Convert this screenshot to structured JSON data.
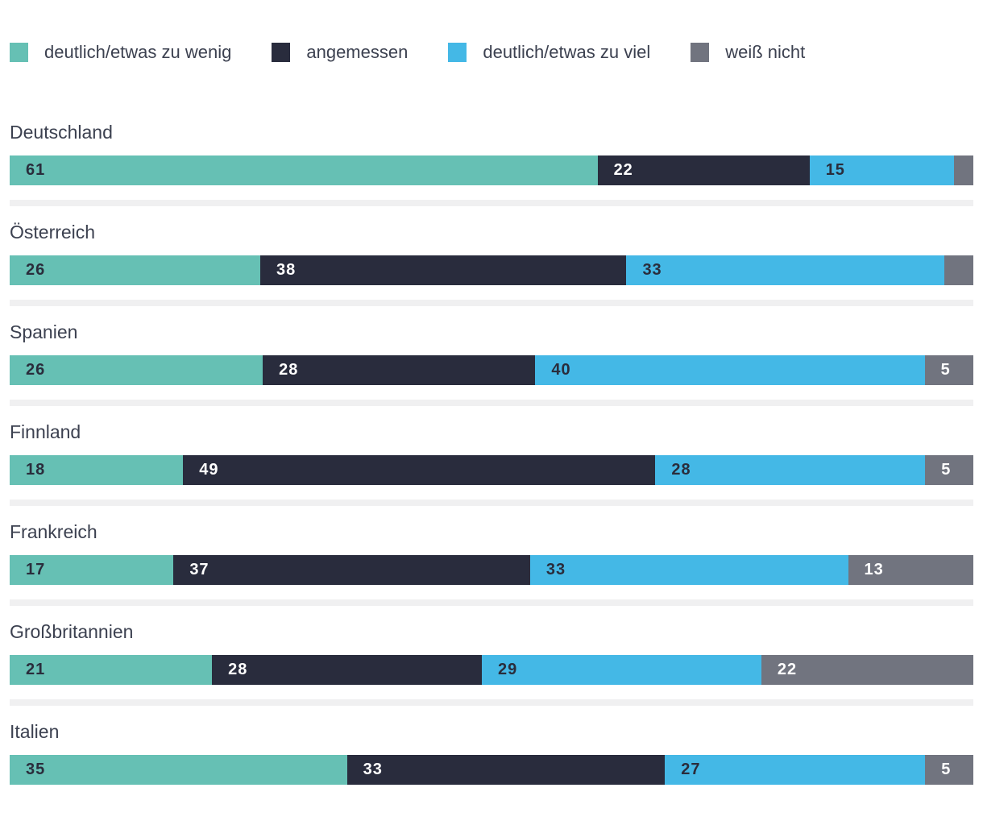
{
  "chart_data": {
    "type": "bar",
    "variant": "horizontal_stacked_percent",
    "title": "",
    "xlabel": "",
    "ylabel": "",
    "unit": "percent",
    "grid": false,
    "legend_position": "top",
    "value_label_min_value": 5,
    "categories": [
      "Deutschland",
      "Österreich",
      "Spanien",
      "Finnland",
      "Frankreich",
      "Großbritannien",
      "Italien"
    ],
    "series": [
      {
        "name": "deutlich/etwas zu wenig",
        "color": "#66C0B4",
        "value_text_color": "#2A2D3C",
        "values": [
          61,
          26,
          26,
          18,
          17,
          21,
          35
        ]
      },
      {
        "name": "angemessen",
        "color": "#292C3D",
        "value_text_color": "#FFFFFF",
        "values": [
          22,
          38,
          28,
          49,
          37,
          28,
          33
        ]
      },
      {
        "name": "deutlich/etwas zu viel",
        "color": "#44B8E6",
        "value_text_color": "#2A2D3C",
        "values": [
          15,
          33,
          40,
          28,
          33,
          29,
          27
        ]
      },
      {
        "name": "weiß nicht",
        "color": "#71747F",
        "value_text_color": "#FFFFFF",
        "values": [
          2,
          3,
          5,
          5,
          13,
          22,
          5
        ]
      }
    ]
  }
}
